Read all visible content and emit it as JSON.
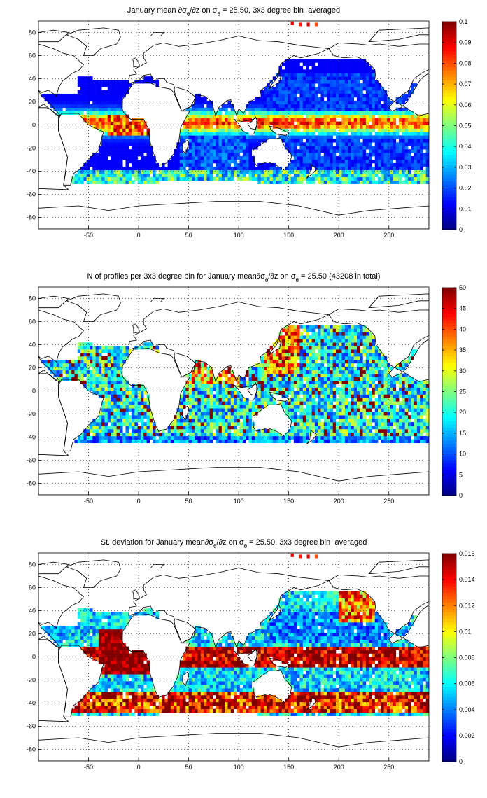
{
  "figure": {
    "panels": [
      {
        "id": "mean",
        "title_parts": [
          {
            "t": "January mean ∂σ"
          },
          {
            "t": "θ",
            "sub": true
          },
          {
            "t": "/∂z on σ"
          },
          {
            "t": "θ",
            "sub": true
          },
          {
            "t": " = 25.50, 3x3 degree bin−averaged"
          }
        ],
        "colorbar_ticks": [
          "0",
          "0.01",
          "0.02",
          "0.03",
          "0.04",
          "0.05",
          "0.06",
          "0.07",
          "0.08",
          "0.09",
          "0.1"
        ],
        "clim": [
          0,
          0.1
        ]
      },
      {
        "id": "count",
        "title_parts": [
          {
            "t": "N of profiles per 3x3 degree bin for January mean∂σ"
          },
          {
            "t": "θ",
            "sub": true
          },
          {
            "t": "/∂z on σ"
          },
          {
            "t": "θ",
            "sub": true
          },
          {
            "t": " = 25.50 (43208 in total)"
          }
        ],
        "colorbar_ticks": [
          "0",
          "5",
          "10",
          "15",
          "20",
          "25",
          "30",
          "35",
          "40",
          "45",
          "50"
        ],
        "clim": [
          0,
          50
        ]
      },
      {
        "id": "std",
        "title_parts": [
          {
            "t": "St. deviation for January mean∂σ"
          },
          {
            "t": "θ",
            "sub": true
          },
          {
            "t": "/∂z on σ"
          },
          {
            "t": "θ",
            "sub": true
          },
          {
            "t": " = 25.50, 3x3 degree bin−averaged"
          }
        ],
        "colorbar_ticks": [
          "0",
          "0.002",
          "0.004",
          "0.006",
          "0.008",
          "0.01",
          "0.012",
          "0.014",
          "0.016"
        ],
        "clim": [
          0,
          0.016
        ]
      }
    ],
    "x_ticks": [
      "-50",
      "0",
      "50",
      "100",
      "150",
      "200",
      "250"
    ],
    "y_ticks": [
      "80",
      "60",
      "40",
      "20",
      "0",
      "-20",
      "-40",
      "-60",
      "-80"
    ],
    "xlim": [
      -100,
      290
    ],
    "ylim": [
      -90,
      90
    ],
    "colormap": "jet",
    "grid": "dotted"
  },
  "chart_data": [
    {
      "type": "heatmap",
      "title": "January mean ∂σθ/∂z on σθ = 25.50, 3x3 degree bin−averaged",
      "xlim": [
        -100,
        290
      ],
      "ylim": [
        -90,
        90
      ],
      "clim": [
        0,
        0.1
      ],
      "bin_size_deg": 3,
      "colormap": "jet"
    },
    {
      "type": "heatmap",
      "title": "N of profiles per 3x3 degree bin for January mean∂σθ/∂z on σθ = 25.50 (43208 in total)",
      "xlim": [
        -100,
        290
      ],
      "ylim": [
        -90,
        90
      ],
      "clim": [
        0,
        50
      ],
      "bin_size_deg": 3,
      "colormap": "jet",
      "total_profiles": 43208
    },
    {
      "type": "heatmap",
      "title": "St. deviation for January mean∂σθ/∂z on σθ = 25.50, 3x3 degree bin−averaged",
      "xlim": [
        -100,
        290
      ],
      "ylim": [
        -90,
        90
      ],
      "clim": [
        0,
        0.016
      ],
      "bin_size_deg": 3,
      "colormap": "jet"
    }
  ]
}
